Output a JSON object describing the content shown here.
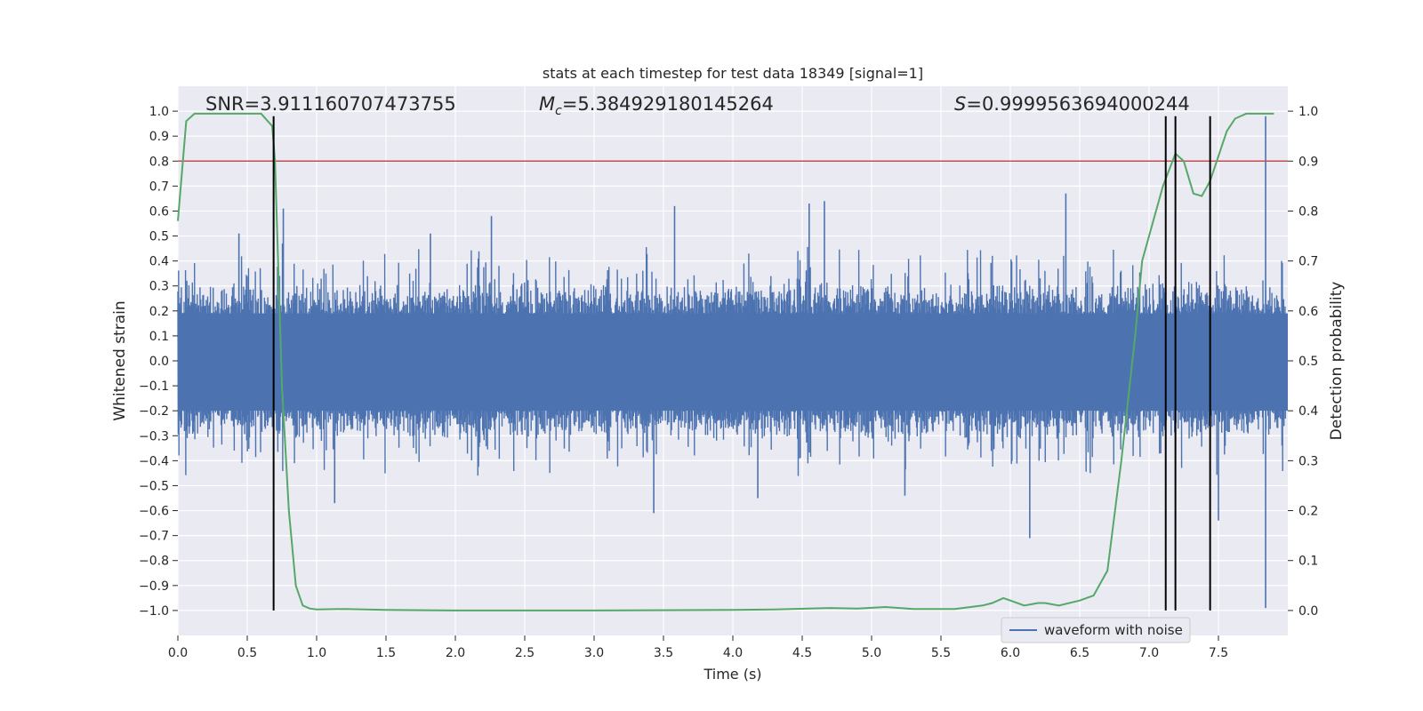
{
  "chart_data": {
    "type": "line",
    "title": "stats at each timestep for test data 18349 [signal=1]",
    "xlabel": "Time (s)",
    "ylabel": "Whitened strain",
    "y2label": "Detection probability",
    "xlim": [
      0.0,
      8.0
    ],
    "ylim": [
      -1.1,
      1.1
    ],
    "y2lim": [
      -0.05,
      1.05
    ],
    "x_ticks": [
      "0.0",
      "0.5",
      "1.0",
      "1.5",
      "2.0",
      "2.5",
      "3.0",
      "3.5",
      "4.0",
      "4.5",
      "5.0",
      "5.5",
      "6.0",
      "6.5",
      "7.0",
      "7.5"
    ],
    "y_ticks": [
      "1.0",
      "0.9",
      "0.8",
      "0.7",
      "0.6",
      "0.5",
      "0.4",
      "0.3",
      "0.2",
      "0.1",
      "0.0",
      "−0.1",
      "−0.2",
      "−0.3",
      "−0.4",
      "−0.5",
      "−0.6",
      "−0.7",
      "−0.8",
      "−0.9",
      "−1.0"
    ],
    "y2_ticks": [
      "1.0",
      "0.9",
      "0.8",
      "0.7",
      "0.6",
      "0.5",
      "0.4",
      "0.3",
      "0.2",
      "0.1",
      "0.0"
    ],
    "grid": true,
    "legend_position": "lower-right",
    "annotations": {
      "snr": "SNR=3.911160707473755",
      "mc_symbol": "M",
      "mc_subscript": "c",
      "mc_value": "=5.384929180145264",
      "s_symbol": "S",
      "s_value": "=0.9999563694000244"
    },
    "series": [
      {
        "name": "waveform with noise",
        "color": "#4c72b0",
        "axis": "left",
        "sampling": "dense noise, approx. ±0.2 core band, spikes to ±0.5",
        "peaks": [
          {
            "x": 0.44,
            "y": 0.51
          },
          {
            "x": 0.76,
            "y": 0.61
          },
          {
            "x": 1.82,
            "y": 0.51
          },
          {
            "x": 2.26,
            "y": 0.58
          },
          {
            "x": 3.58,
            "y": 0.62
          },
          {
            "x": 4.55,
            "y": 0.63
          },
          {
            "x": 4.66,
            "y": 0.64
          },
          {
            "x": 6.4,
            "y": 0.67
          },
          {
            "x": 7.84,
            "y": 0.98
          }
        ],
        "troughs": [
          {
            "x": 1.13,
            "y": -0.57
          },
          {
            "x": 3.43,
            "y": -0.61
          },
          {
            "x": 4.18,
            "y": -0.55
          },
          {
            "x": 5.24,
            "y": -0.54
          },
          {
            "x": 6.14,
            "y": -0.71
          },
          {
            "x": 7.5,
            "y": -0.64
          },
          {
            "x": 7.84,
            "y": -0.99
          }
        ]
      },
      {
        "name": "",
        "color": "#55a868",
        "axis": "right",
        "x": [
          0.0,
          0.06,
          0.12,
          0.2,
          0.3,
          0.4,
          0.5,
          0.6,
          0.68,
          0.7,
          0.75,
          0.8,
          0.85,
          0.9,
          0.95,
          1.0,
          1.2,
          1.5,
          2.0,
          3.0,
          4.0,
          4.3,
          4.7,
          4.9,
          5.1,
          5.3,
          5.6,
          5.8,
          5.87,
          5.95,
          6.0,
          6.1,
          6.2,
          6.25,
          6.35,
          6.5,
          6.6,
          6.7,
          6.8,
          6.9,
          6.95,
          7.0,
          7.1,
          7.19,
          7.25,
          7.32,
          7.38,
          7.44,
          7.5,
          7.56,
          7.62,
          7.7,
          7.8,
          7.9
        ],
        "y": [
          0.78,
          0.98,
          0.995,
          0.995,
          0.995,
          0.995,
          0.995,
          0.995,
          0.97,
          0.9,
          0.45,
          0.2,
          0.05,
          0.01,
          0.004,
          0.002,
          0.003,
          0.001,
          0.0,
          0.0,
          0.001,
          0.002,
          0.005,
          0.004,
          0.007,
          0.003,
          0.003,
          0.01,
          0.015,
          0.025,
          0.02,
          0.01,
          0.015,
          0.015,
          0.01,
          0.02,
          0.03,
          0.08,
          0.3,
          0.55,
          0.7,
          0.75,
          0.85,
          0.915,
          0.9,
          0.835,
          0.83,
          0.86,
          0.91,
          0.96,
          0.985,
          0.995,
          0.995,
          0.995
        ]
      }
    ],
    "reference_lines": {
      "threshold": {
        "axis": "right",
        "y": 0.9,
        "color": "#c44e52"
      },
      "event_markers": {
        "color": "#000000",
        "x": [
          0.69,
          7.12,
          7.19,
          7.44
        ],
        "y_top": 0.99,
        "y_bottom": 0.0
      }
    }
  }
}
